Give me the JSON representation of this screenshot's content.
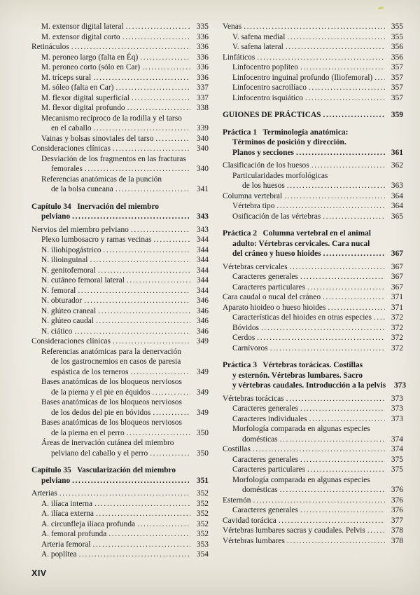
{
  "colors": {
    "paper": "#edeae2",
    "ink": "#1b1b1b",
    "pen_mark": "#c9cd4a"
  },
  "footer": {
    "label": "XIV"
  },
  "toc": {
    "left": [
      {
        "text": "M. extensor digital lateral",
        "page": "335",
        "indent": 1
      },
      {
        "text": "M. extensor digital corto",
        "page": "336",
        "indent": 1
      },
      {
        "text": "Retináculos",
        "page": "336",
        "indent": 0
      },
      {
        "text": "M. peroneo largo (falta en Éq)",
        "page": "336",
        "indent": 1
      },
      {
        "text": "M. peroneo corto (sólo en Car)",
        "page": "336",
        "indent": 1
      },
      {
        "text": "M. tríceps sural",
        "page": "336",
        "indent": 1
      },
      {
        "text": "M. sóleo (falta en Car)",
        "page": "337",
        "indent": 1
      },
      {
        "text": "M. flexor digital superficial",
        "page": "337",
        "indent": 1
      },
      {
        "text": "M. flexor digital profundo",
        "page": "338",
        "indent": 1
      },
      {
        "text": "Mecanismo recíproco de la rodilla y el tarso",
        "indent": 1
      },
      {
        "text": "en el caballo",
        "page": "339",
        "indent": 2
      },
      {
        "text": "Vainas y bolsas sinoviales del tarso",
        "page": "340",
        "indent": 1
      },
      {
        "text": "Consideraciones clínicas",
        "page": "340",
        "indent": 0
      },
      {
        "text": "Desviación de los fragmentos en las fracturas",
        "indent": 1
      },
      {
        "text": "femorales",
        "page": "340",
        "indent": 2
      },
      {
        "text": "Referencias anatómicas de la punción",
        "indent": 1
      },
      {
        "text": "de la bolsa cuneana",
        "page": "341",
        "indent": 2
      },
      {
        "text": "Capítulo 34   Inervación del miembro",
        "indent": 0,
        "bold": true,
        "gap": "m"
      },
      {
        "text": "pelviano",
        "page": "343",
        "indent": 1,
        "bold": true
      },
      {
        "text": "Nervios del miembro pelviano",
        "page": "343",
        "indent": 0,
        "gap": "s"
      },
      {
        "text": "Plexo lumbosacro y ramas vecinas",
        "page": "344",
        "indent": 1
      },
      {
        "text": "N. iliohipogástrico",
        "page": "344",
        "indent": 1
      },
      {
        "text": "N. ilioinguinal",
        "page": "344",
        "indent": 1
      },
      {
        "text": "N. genitofemoral",
        "page": "344",
        "indent": 1
      },
      {
        "text": "N. cutáneo femoral lateral",
        "page": "344",
        "indent": 1
      },
      {
        "text": "N. femoral",
        "page": "344",
        "indent": 1
      },
      {
        "text": "N. obturador",
        "page": "346",
        "indent": 1
      },
      {
        "text": "N. glúteo craneal",
        "page": "346",
        "indent": 1
      },
      {
        "text": "N. glúteo caudal",
        "page": "346",
        "indent": 1
      },
      {
        "text": "N. ciático",
        "page": "346",
        "indent": 1
      },
      {
        "text": "Consideraciones clínicas",
        "page": "349",
        "indent": 0
      },
      {
        "text": "Referencias anatómicas para la denervación",
        "indent": 1
      },
      {
        "text": "de los gastrocnemios en casos de paresia",
        "indent": 2
      },
      {
        "text": "espástica de los terneros",
        "page": "349",
        "indent": 2
      },
      {
        "text": "Bases anatómicas de los bloqueos nerviosos",
        "indent": 1
      },
      {
        "text": "de la pierna y el pie en équidos",
        "page": "349",
        "indent": 2
      },
      {
        "text": "Bases anatómicas de los bloqueos nerviosos",
        "indent": 1
      },
      {
        "text": "de los dedos del pie en bóvidos",
        "page": "349",
        "indent": 2
      },
      {
        "text": "Bases anatómicas de los bloqueos nerviosos",
        "indent": 1
      },
      {
        "text": "de la pierna en el perro",
        "page": "350",
        "indent": 2
      },
      {
        "text": "Áreas de inervación cutánea del miembro",
        "indent": 1
      },
      {
        "text": "pelviano del caballo y el perro",
        "page": "350",
        "indent": 2
      },
      {
        "text": "Capítulo 35   Vascularización del miembro",
        "indent": 0,
        "bold": true,
        "gap": "m"
      },
      {
        "text": "pelviano",
        "page": "351",
        "indent": 1,
        "bold": true
      },
      {
        "text": "Arterias",
        "page": "352",
        "indent": 0,
        "gap": "s"
      },
      {
        "text": "A. ilíaca interna",
        "page": "352",
        "indent": 1
      },
      {
        "text": "A. ilíaca externa",
        "page": "352",
        "indent": 1
      },
      {
        "text": "A. circunfleja ilíaca profunda",
        "page": "352",
        "indent": 1
      },
      {
        "text": "A. femoral profunda",
        "page": "352",
        "indent": 1
      },
      {
        "text": "Arteria femoral",
        "page": "353",
        "indent": 1
      },
      {
        "text": "A. poplítea",
        "page": "354",
        "indent": 1
      }
    ],
    "right": [
      {
        "text": "Venas",
        "page": "355",
        "indent": 0
      },
      {
        "text": "V. safena medial",
        "page": "355",
        "indent": 1
      },
      {
        "text": "V. safena lateral",
        "page": "356",
        "indent": 1
      },
      {
        "text": "Linfáticos",
        "page": "356",
        "indent": 0
      },
      {
        "text": "Linfocentro poplíteo",
        "page": "357",
        "indent": 1
      },
      {
        "text": "Linfocentro inguinal profundo (Iliofemoral)",
        "page": "357",
        "indent": 1
      },
      {
        "text": "Linfocentro sacroilíaco",
        "page": "357",
        "indent": 1
      },
      {
        "text": "Linfocentro isquiático",
        "page": "357",
        "indent": 1
      },
      {
        "text": "GUIONES DE PRÁCTICAS",
        "page": "359",
        "indent": 0,
        "bold": true,
        "gap": "m"
      },
      {
        "text": "Práctica 1   Terminología anatómica:",
        "indent": 0,
        "bold": true,
        "gap": "m"
      },
      {
        "text": "Términos de posición y dirección.",
        "indent": 1,
        "bold": true
      },
      {
        "text": "Planos y secciones",
        "page": "361",
        "indent": 1,
        "bold": true
      },
      {
        "text": "Clasificación de los huesos",
        "page": "362",
        "indent": 0,
        "gap": "s"
      },
      {
        "text": "Particularidades morfológicas",
        "indent": 1
      },
      {
        "text": "de los huesos",
        "page": "363",
        "indent": 2
      },
      {
        "text": "Columna vertebral",
        "page": "364",
        "indent": 0
      },
      {
        "text": "Vértebra tipo",
        "page": "364",
        "indent": 1
      },
      {
        "text": "Osificación de las vértebras",
        "page": "365",
        "indent": 1
      },
      {
        "text": "Práctica 2   Columna vertebral en el animal",
        "indent": 0,
        "bold": true,
        "gap": "m"
      },
      {
        "text": "adulto: Vértebras cervicales. Cara nucal",
        "indent": 1,
        "bold": true
      },
      {
        "text": "del cráneo y hueso hioides",
        "page": "367",
        "indent": 1,
        "bold": true
      },
      {
        "text": "Vértebras cervicales",
        "page": "367",
        "indent": 0,
        "gap": "s"
      },
      {
        "text": "Caracteres generales",
        "page": "367",
        "indent": 1
      },
      {
        "text": "Caracteres particulares",
        "page": "367",
        "indent": 1
      },
      {
        "text": "Cara caudal o nucal del cráneo",
        "page": "371",
        "indent": 0
      },
      {
        "text": "Aparato hioideo o hueso hioides",
        "page": "371",
        "indent": 0
      },
      {
        "text": "Características del hioides en otras especies",
        "page": "372",
        "indent": 1
      },
      {
        "text": "Bóvidos",
        "page": "372",
        "indent": 1
      },
      {
        "text": "Cerdos",
        "page": "372",
        "indent": 1
      },
      {
        "text": "Carnívoros",
        "page": "372",
        "indent": 1
      },
      {
        "text": "Práctica 3   Vértebras torácicas. Costillas",
        "indent": 0,
        "bold": true,
        "gap": "m"
      },
      {
        "text": "y esternón. Vértebras lumbares. Sacro",
        "indent": 1,
        "bold": true
      },
      {
        "text": "y vértebras caudales. Introducción a la pelvis",
        "page": "373",
        "indent": 1,
        "bold": true
      },
      {
        "text": "Vértebras torácicas",
        "page": "373",
        "indent": 0,
        "gap": "s"
      },
      {
        "text": "Caracteres generales",
        "page": "373",
        "indent": 1
      },
      {
        "text": "Caracteres individuales",
        "page": "373",
        "indent": 1
      },
      {
        "text": "Morfología comparada en algunas especies",
        "indent": 1
      },
      {
        "text": "domésticas",
        "page": "374",
        "indent": 2
      },
      {
        "text": "Costillas",
        "page": "374",
        "indent": 0
      },
      {
        "text": "Caracteres generales",
        "page": "375",
        "indent": 1
      },
      {
        "text": "Caracteres particulares",
        "page": "375",
        "indent": 1
      },
      {
        "text": "Morfología comparada en algunas especies",
        "indent": 1
      },
      {
        "text": "domésticas",
        "page": "376",
        "indent": 2
      },
      {
        "text": "Esternón",
        "page": "376",
        "indent": 0
      },
      {
        "text": "Caracteres generales",
        "page": "376",
        "indent": 1
      },
      {
        "text": "Cavidad torácica",
        "page": "377",
        "indent": 0
      },
      {
        "text": "Vértebras lumbares sacras y caudales. Pelvis",
        "page": "378",
        "indent": 0
      },
      {
        "text": "Vértebras lumbares",
        "page": "378",
        "indent": 0
      }
    ]
  }
}
